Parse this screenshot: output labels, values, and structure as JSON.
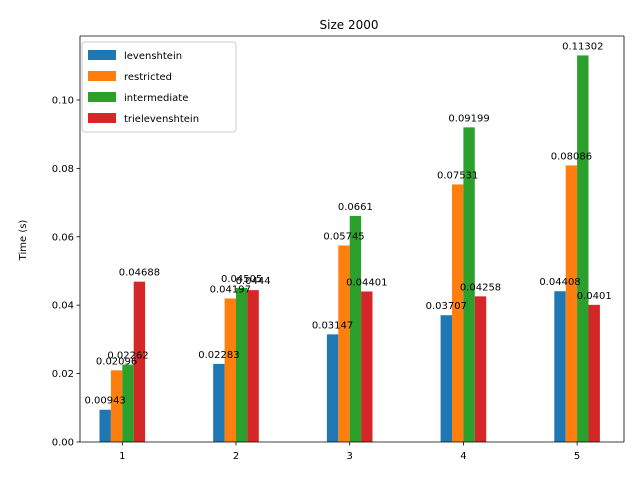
{
  "chart_data": {
    "type": "bar",
    "title": "Size 2000",
    "xlabel": "",
    "ylabel": "Time (s)",
    "categories": [
      "1",
      "2",
      "3",
      "4",
      "5"
    ],
    "ylim": [
      0,
      0.1187
    ],
    "yticks": [
      "0.00",
      "0.02",
      "0.04",
      "0.06",
      "0.08",
      "0.10"
    ],
    "ytick_values": [
      0,
      0.02,
      0.04,
      0.06,
      0.08,
      0.1
    ],
    "legend_position": "upper left",
    "grid": false,
    "series": [
      {
        "name": "levenshtein",
        "color": "#1f77b4",
        "values": [
          0.00943,
          0.02283,
          0.03147,
          0.03707,
          0.04408
        ],
        "labels": [
          "0.00943",
          "0.02283",
          "0.03147",
          "0.03707",
          "0.04408"
        ]
      },
      {
        "name": "restricted",
        "color": "#ff7f0e",
        "values": [
          0.02096,
          0.04197,
          0.05745,
          0.07531,
          0.08086
        ],
        "labels": [
          "0.02096",
          "0.04197",
          "0.05745",
          "0.07531",
          "0.08086"
        ]
      },
      {
        "name": "intermediate",
        "color": "#2ca02c",
        "values": [
          0.02262,
          0.04505,
          0.0661,
          0.09199,
          0.11302
        ],
        "labels": [
          "0.02262",
          "0.04505",
          "0.0661",
          "0.09199",
          "0.11302"
        ]
      },
      {
        "name": "trielevenshtein",
        "color": "#d62728",
        "values": [
          0.04688,
          0.0444,
          0.04401,
          0.04258,
          0.0401
        ],
        "labels": [
          "0.04688",
          "0.0444",
          "0.04401",
          "0.04258",
          "0.0401"
        ]
      }
    ]
  }
}
